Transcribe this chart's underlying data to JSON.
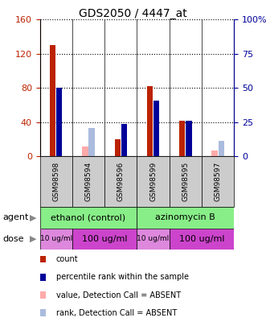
{
  "title": "GDS2050 / 4447_at",
  "samples": [
    "GSM98598",
    "GSM98594",
    "GSM98596",
    "GSM98599",
    "GSM98595",
    "GSM98597"
  ],
  "count_values": [
    130,
    0,
    20,
    82,
    42,
    0
  ],
  "count_absent": [
    0,
    12,
    0,
    0,
    0,
    7
  ],
  "percentile_values": [
    80,
    0,
    38,
    65,
    42,
    0
  ],
  "percentile_absent": [
    0,
    33,
    0,
    0,
    0,
    18
  ],
  "left_ylim": [
    0,
    160
  ],
  "right_ylim": [
    0,
    100
  ],
  "left_yticks": [
    0,
    40,
    80,
    120,
    160
  ],
  "right_yticks": [
    0,
    25,
    50,
    75,
    100
  ],
  "right_yticklabels": [
    "0",
    "25",
    "50",
    "75",
    "100%"
  ],
  "left_yticklabels": [
    "0",
    "40",
    "80",
    "120",
    "160"
  ],
  "color_count": "#bb2200",
  "color_percentile": "#000099",
  "color_count_absent": "#ffaaaa",
  "color_percentile_absent": "#aabbdd",
  "agent_ethanol": "ethanol (control)",
  "agent_azino": "azinomycin B",
  "agent_color": "#88ee88",
  "dose_light": "#dd88dd",
  "dose_dark": "#cc44cc",
  "background_plot": "#ffffff",
  "sample_box_color": "#cccccc",
  "legend_items": [
    {
      "label": "count",
      "color": "#bb2200"
    },
    {
      "label": "percentile rank within the sample",
      "color": "#000099"
    },
    {
      "label": "value, Detection Call = ABSENT",
      "color": "#ffaaaa"
    },
    {
      "label": "rank, Detection Call = ABSENT",
      "color": "#aabbdd"
    }
  ]
}
